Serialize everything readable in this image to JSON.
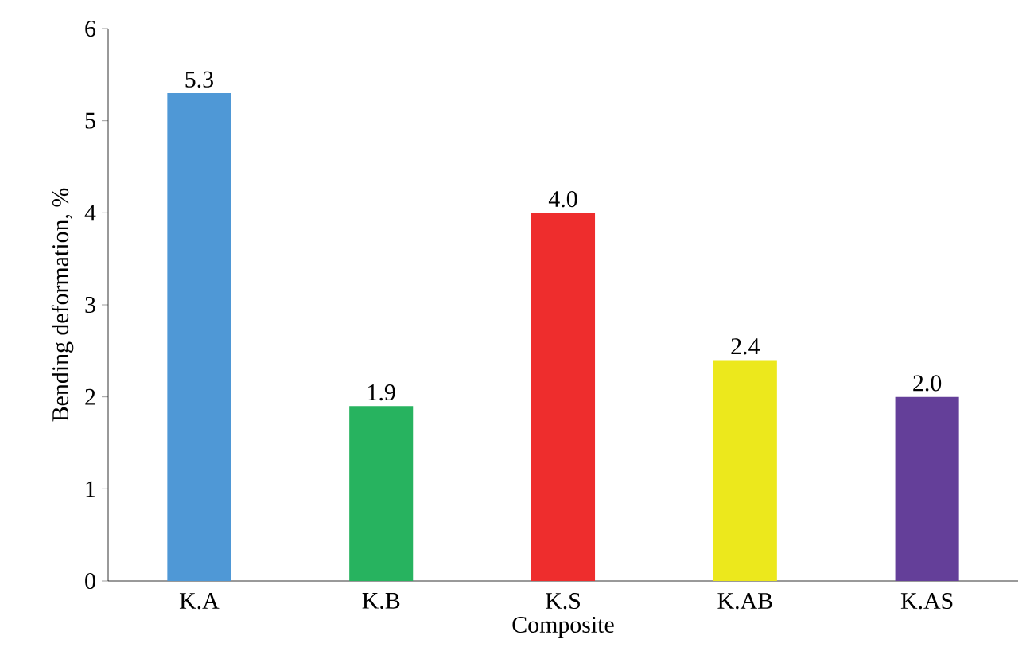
{
  "chart_data": {
    "type": "bar",
    "xlabel": "Composite",
    "ylabel": "Bending deformation, %",
    "categories": [
      "K.A",
      "K.B",
      "K.S",
      "K.AB",
      "K.AS"
    ],
    "values": [
      5.3,
      1.9,
      4.0,
      2.4,
      2.0
    ],
    "value_labels": [
      "5.3",
      "1.9",
      "4.0",
      "2.4",
      "2.0"
    ],
    "colors": [
      "#4f98d6",
      "#27b35f",
      "#ee2d2d",
      "#ece81c",
      "#643f99"
    ],
    "ylim": [
      0,
      6
    ],
    "yticks": [
      0,
      1,
      2,
      3,
      4,
      5,
      6
    ]
  }
}
